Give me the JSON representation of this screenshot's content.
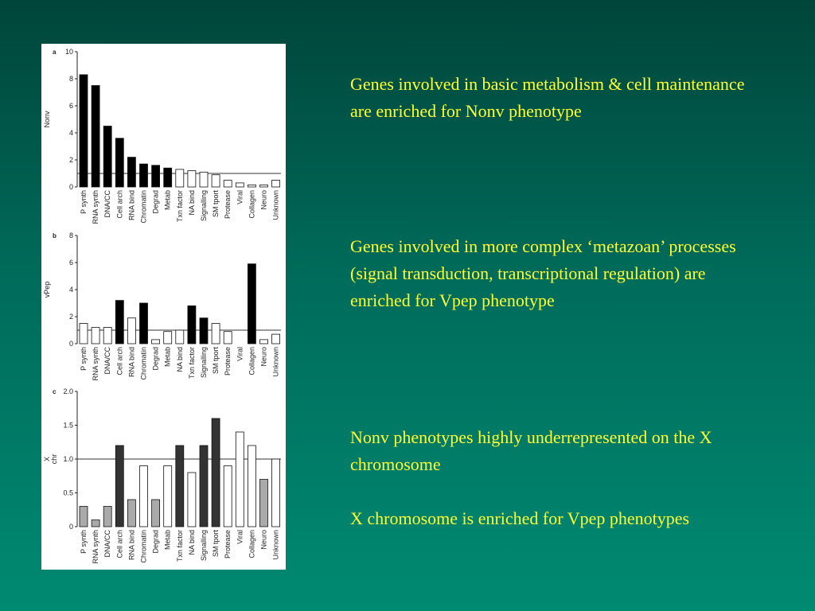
{
  "colors": {
    "background_top": "#00453a",
    "background_bottom": "#008a72",
    "text": "#ffff33",
    "bar_black": "#000000",
    "bar_dark": "#333333",
    "bar_gray": "#aaaaaa",
    "bar_white": "#ffffff"
  },
  "text_blocks": [
    "Genes involved in basic metabolism & cell maintenance are enriched for Nonv phenotype",
    "Genes involved in more complex ‘metazoan’ processes (signal transduction, transcriptional regulation) are enriched for Vpep phenotype",
    "Nonv phenotypes highly underrepresented on the X chromosome",
    "X chromosome is enriched for Vpep phenotypes"
  ],
  "chart_data": [
    {
      "type": "bar",
      "panel": "a",
      "ylabel": "Nonv",
      "ylim": [
        0,
        10
      ],
      "yticks": [
        "0",
        "2",
        "4",
        "6",
        "8",
        "10"
      ],
      "reference_line": 1,
      "categories": [
        "P synth",
        "RNA synth",
        "DNA/CC",
        "Cell arch",
        "RNA bind",
        "Chromatin",
        "Degrad",
        "Metab",
        "Txn factor",
        "NA bind",
        "Signalling",
        "SM tport",
        "Protease",
        "Viral",
        "Collagen",
        "Neuro",
        "Unknown"
      ],
      "values": [
        8.3,
        7.5,
        4.5,
        3.6,
        2.2,
        1.7,
        1.6,
        1.4,
        1.3,
        1.2,
        1.1,
        0.9,
        0.5,
        0.3,
        0.15,
        0.15,
        0.5
      ],
      "fills": [
        "black",
        "black",
        "black",
        "black",
        "black",
        "black",
        "black",
        "black",
        "white",
        "white",
        "white",
        "white",
        "white",
        "white",
        "white",
        "white",
        "white"
      ]
    },
    {
      "type": "bar",
      "panel": "b",
      "ylabel": "vPep",
      "ylim": [
        0,
        8
      ],
      "yticks": [
        "0",
        "2",
        "4",
        "6",
        "8"
      ],
      "reference_line": 1,
      "categories": [
        "P synth",
        "RNA synth",
        "DNA/CC",
        "Cell arch",
        "RNA bind",
        "Chromatin",
        "Degrad",
        "Metab",
        "NA bind",
        "Txn factor",
        "Signalling",
        "SM tport",
        "Protease",
        "Viral",
        "Collagen",
        "Neuro",
        "Unknown"
      ],
      "values": [
        1.5,
        1.2,
        1.2,
        3.2,
        1.9,
        3.0,
        0.3,
        0.9,
        1.0,
        2.8,
        1.9,
        1.5,
        0.9,
        0.0,
        5.9,
        0.3,
        0.7
      ],
      "fills": [
        "white",
        "white",
        "white",
        "black",
        "white",
        "black",
        "white",
        "white",
        "white",
        "black",
        "black",
        "white",
        "white",
        "white",
        "black",
        "white",
        "white"
      ]
    },
    {
      "type": "bar",
      "panel": "c",
      "ylabel": "X chr",
      "ylim": [
        0,
        2.0
      ],
      "yticks": [
        "0",
        "0.5",
        "1.0",
        "1.5",
        "2.0"
      ],
      "reference_line": 1.0,
      "categories": [
        "P synth",
        "RNA synth",
        "DNA/CC",
        "Cell arch",
        "RNA bind",
        "Chromatin",
        "Degrad",
        "Metab",
        "Txn factor",
        "NA bind",
        "Signalling",
        "SM tport",
        "Protease",
        "Viral",
        "Collagen",
        "Neuro",
        "Unknown"
      ],
      "values": [
        0.3,
        0.1,
        0.3,
        1.2,
        0.4,
        0.9,
        0.4,
        0.9,
        1.2,
        0.8,
        1.2,
        1.6,
        0.9,
        1.4,
        1.2,
        0.7,
        1.0
      ],
      "fills": [
        "gray",
        "gray",
        "gray",
        "dark",
        "gray",
        "white",
        "gray",
        "white",
        "dark",
        "white",
        "dark",
        "dark",
        "white",
        "white",
        "white",
        "gray",
        "white"
      ]
    }
  ]
}
